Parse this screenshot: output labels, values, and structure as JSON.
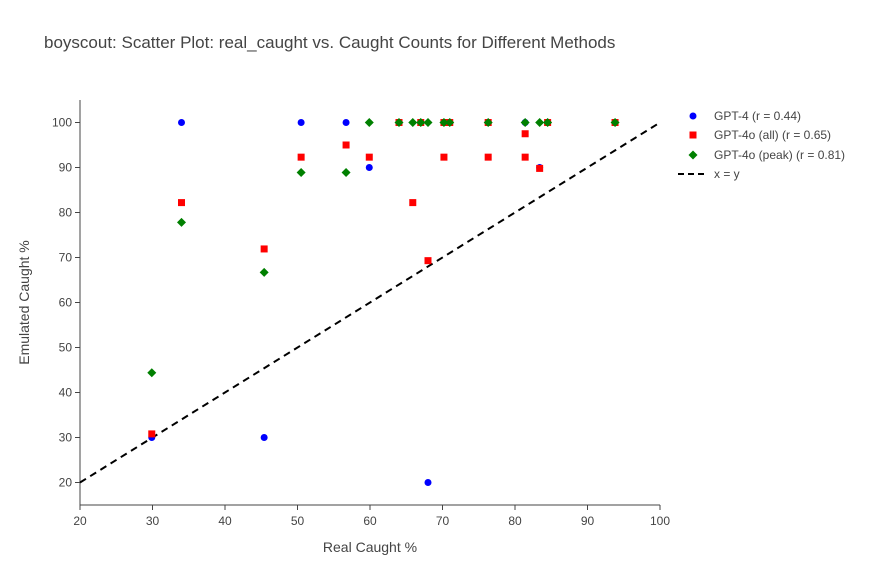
{
  "title": "boyscout: Scatter Plot: real_caught vs. Caught Counts for Different Methods",
  "chart_data": {
    "type": "scatter",
    "title": "boyscout: Scatter Plot: real_caught vs. Caught Counts for Different Methods",
    "xlabel": "Real Caught %",
    "ylabel": "Emulated Caught %",
    "xlim": [
      20,
      100
    ],
    "ylim": [
      15,
      105
    ],
    "xticks": [
      20,
      30,
      40,
      50,
      60,
      70,
      80,
      90,
      100
    ],
    "yticks": [
      20,
      30,
      40,
      50,
      60,
      70,
      80,
      90,
      100
    ],
    "grid": false,
    "legend_position": "top-right outside",
    "series": [
      {
        "name": "GPT-4 (r = 0.44)",
        "marker": "circle",
        "color": "#0000ff",
        "points": [
          [
            34,
            100
          ],
          [
            50.5,
            100
          ],
          [
            56.7,
            100
          ],
          [
            64,
            100
          ],
          [
            67,
            100
          ],
          [
            70.2,
            100
          ],
          [
            71,
            100
          ],
          [
            76.3,
            100
          ],
          [
            81.4,
            100
          ],
          [
            84.5,
            100
          ],
          [
            93.8,
            100
          ],
          [
            59.9,
            90
          ],
          [
            83.4,
            90
          ],
          [
            29.9,
            30
          ],
          [
            45.4,
            30
          ],
          [
            68,
            20
          ]
        ]
      },
      {
        "name": "GPT-4o (all) (r = 0.65)",
        "marker": "square",
        "color": "#ff0000",
        "points": [
          [
            64,
            100
          ],
          [
            67,
            100
          ],
          [
            70.2,
            100
          ],
          [
            71,
            100
          ],
          [
            76.3,
            100
          ],
          [
            84.5,
            100
          ],
          [
            93.8,
            100
          ],
          [
            81.4,
            97.5
          ],
          [
            56.7,
            95
          ],
          [
            50.5,
            92.3
          ],
          [
            59.9,
            92.3
          ],
          [
            70.2,
            92.3
          ],
          [
            76.3,
            92.3
          ],
          [
            81.4,
            92.3
          ],
          [
            83.4,
            89.8
          ],
          [
            34,
            82.2
          ],
          [
            65.9,
            82.2
          ],
          [
            45.4,
            71.9
          ],
          [
            68,
            69.3
          ],
          [
            29.9,
            30.8
          ]
        ]
      },
      {
        "name": "GPT-4o (peak) (r = 0.81)",
        "marker": "diamond",
        "color": "#008000",
        "points": [
          [
            59.9,
            100
          ],
          [
            64,
            100
          ],
          [
            65.9,
            100
          ],
          [
            67,
            100
          ],
          [
            68,
            100
          ],
          [
            70.2,
            100
          ],
          [
            71,
            100
          ],
          [
            76.3,
            100
          ],
          [
            81.4,
            100
          ],
          [
            83.4,
            100
          ],
          [
            84.5,
            100
          ],
          [
            93.8,
            100
          ],
          [
            50.5,
            88.9
          ],
          [
            56.7,
            88.9
          ],
          [
            34,
            77.8
          ],
          [
            45.4,
            66.7
          ],
          [
            29.9,
            44.4
          ]
        ]
      },
      {
        "name": "x = y",
        "marker": "dashed-line",
        "color": "#000000",
        "points": [
          [
            20,
            20
          ],
          [
            100,
            100
          ]
        ]
      }
    ]
  }
}
